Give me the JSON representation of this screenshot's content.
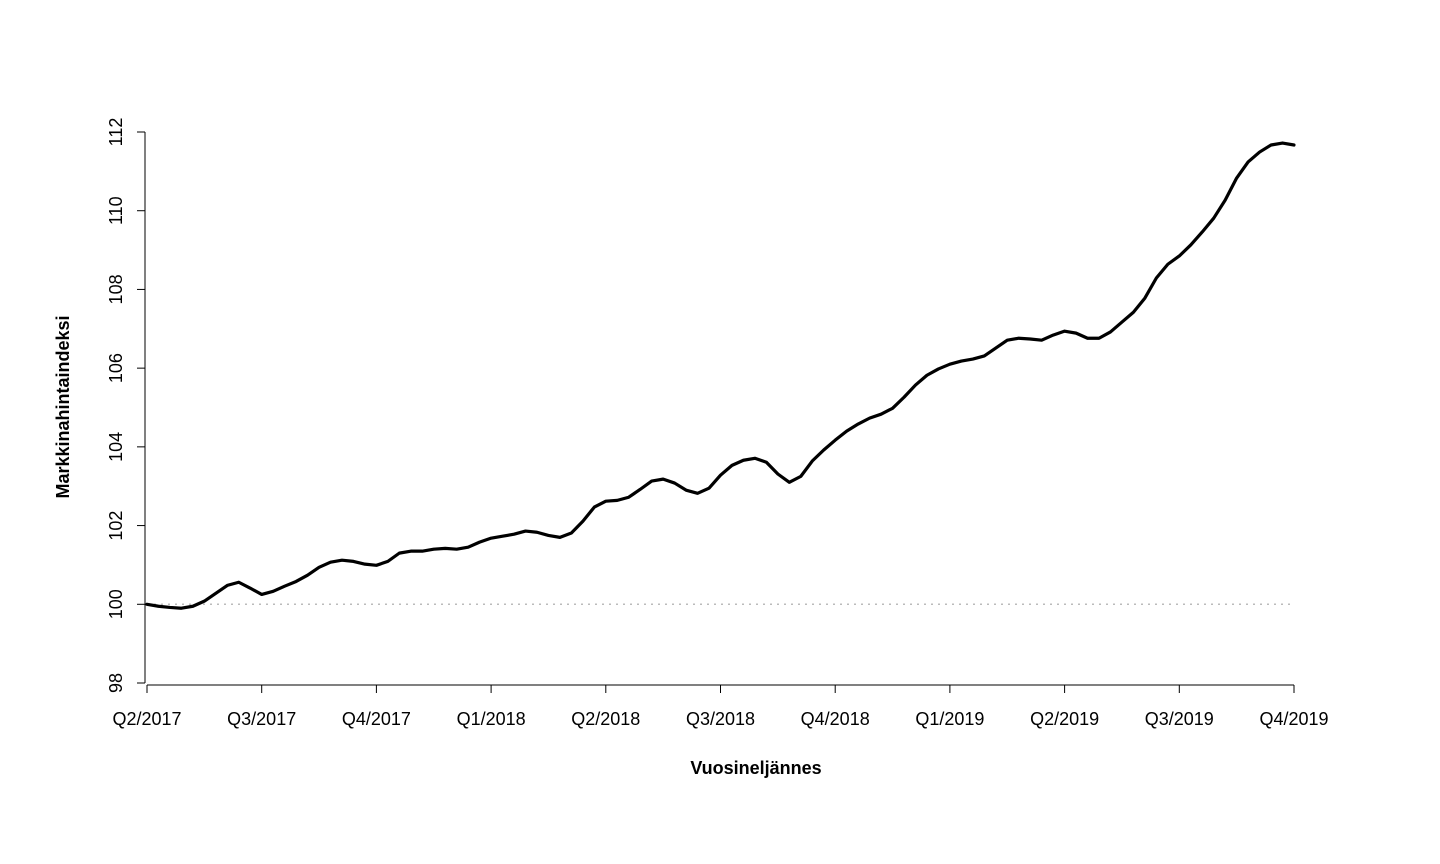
{
  "chart_data": {
    "type": "line",
    "x_label": "Vuosineljännes",
    "y_label": "Markkinahintaindeksi",
    "x": [
      0,
      0.1,
      0.2,
      0.3,
      0.4,
      0.5,
      0.6,
      0.7,
      0.8,
      0.9,
      1,
      1.1,
      1.2,
      1.3,
      1.4,
      1.5,
      1.6,
      1.7,
      1.8,
      1.9,
      2,
      2.1,
      2.2,
      2.3,
      2.4,
      2.5,
      2.6,
      2.7,
      2.8,
      2.9,
      3,
      3.1,
      3.2,
      3.3,
      3.4,
      3.5,
      3.6,
      3.7,
      3.8,
      3.9,
      4,
      4.1,
      4.2,
      4.3,
      4.4,
      4.5,
      4.6,
      4.7,
      4.8,
      4.9,
      5,
      5.1,
      5.2,
      5.3,
      5.4,
      5.5,
      5.6,
      5.7,
      5.8,
      5.9,
      6,
      6.1,
      6.2,
      6.3,
      6.4,
      6.5,
      6.6,
      6.7,
      6.8,
      6.9,
      7,
      7.1,
      7.2,
      7.3,
      7.4,
      7.5,
      7.6,
      7.7,
      7.8,
      7.9,
      8,
      8.1,
      8.2,
      8.3,
      8.4,
      8.5,
      8.6,
      8.7,
      8.8,
      8.9,
      9,
      9.1,
      9.2,
      9.3,
      9.4,
      9.5,
      9.6,
      9.7,
      9.8,
      9.9,
      10
    ],
    "series": [
      {
        "name": "Markkinahintaindeksi",
        "color": "#000000",
        "values": [
          100.0,
          99.95,
          99.92,
          99.9,
          99.95,
          100.08,
          100.28,
          100.48,
          100.56,
          100.41,
          100.25,
          100.33,
          100.46,
          100.58,
          100.74,
          100.94,
          101.07,
          101.12,
          101.09,
          101.02,
          100.99,
          101.09,
          101.3,
          101.35,
          101.35,
          101.4,
          101.42,
          101.4,
          101.45,
          101.58,
          101.68,
          101.73,
          101.78,
          101.86,
          101.83,
          101.75,
          101.7,
          101.81,
          102.11,
          102.47,
          102.62,
          102.64,
          102.72,
          102.92,
          103.13,
          103.18,
          103.08,
          102.9,
          102.82,
          102.95,
          103.28,
          103.53,
          103.66,
          103.71,
          103.61,
          103.31,
          103.1,
          103.25,
          103.64,
          103.92,
          104.17,
          104.4,
          104.58,
          104.73,
          104.83,
          104.98,
          105.26,
          105.57,
          105.82,
          105.98,
          106.1,
          106.18,
          106.23,
          106.31,
          106.51,
          106.71,
          106.76,
          106.74,
          106.71,
          106.84,
          106.94,
          106.89,
          106.76,
          106.76,
          106.92,
          107.17,
          107.42,
          107.78,
          108.29,
          108.64,
          108.85,
          109.13,
          109.46,
          109.81,
          110.27,
          110.83,
          111.24,
          111.49,
          111.67,
          111.72,
          111.67
        ]
      }
    ],
    "reference_line": 100,
    "xlim": [
      0,
      10
    ],
    "xticks": [
      {
        "value": 0,
        "label": "Q2/2017"
      },
      {
        "value": 1,
        "label": "Q3/2017"
      },
      {
        "value": 2,
        "label": "Q4/2017"
      },
      {
        "value": 3,
        "label": "Q1/2018"
      },
      {
        "value": 4,
        "label": "Q2/2018"
      },
      {
        "value": 5,
        "label": "Q3/2018"
      },
      {
        "value": 6,
        "label": "Q4/2018"
      },
      {
        "value": 7,
        "label": "Q1/2019"
      },
      {
        "value": 8,
        "label": "Q2/2019"
      },
      {
        "value": 9,
        "label": "Q3/2019"
      },
      {
        "value": 10,
        "label": "Q4/2019"
      }
    ],
    "ylim": [
      98,
      112
    ],
    "yticks": [
      98,
      100,
      102,
      104,
      106,
      108,
      110,
      112
    ]
  }
}
